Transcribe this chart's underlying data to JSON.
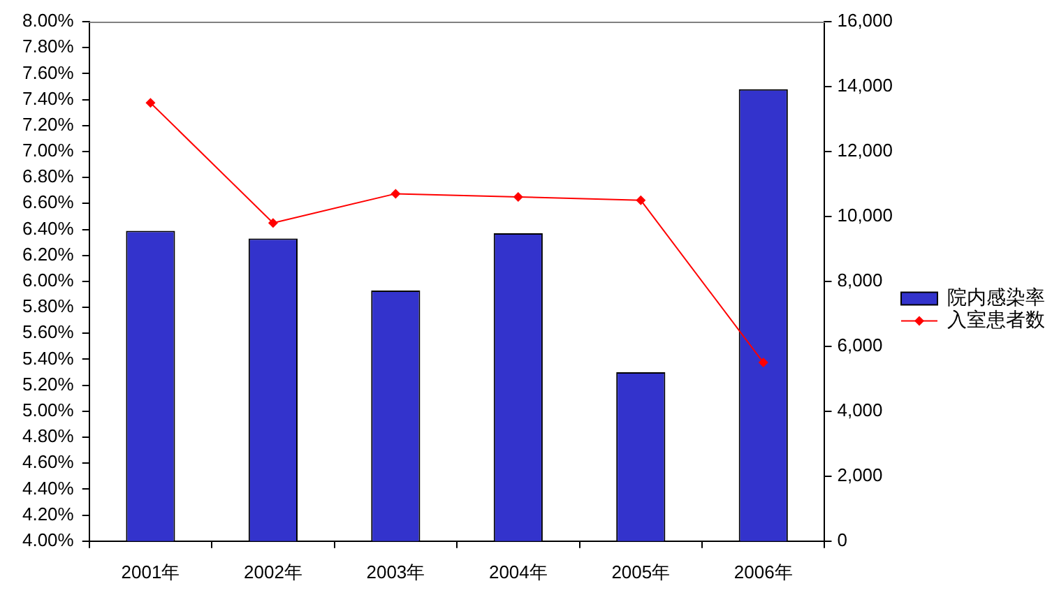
{
  "chart_data": {
    "type": "bar",
    "categories": [
      "2001年",
      "2002年",
      "2003年",
      "2004年",
      "2005年",
      "2006年"
    ],
    "series": [
      {
        "name": "院内感染率",
        "color": "#3333cc",
        "values": [
          6.39,
          6.33,
          5.93,
          6.37,
          5.3,
          7.48
        ]
      },
      {
        "name": "入室患者数",
        "type": "line",
        "axis": "y2",
        "color": "#ff0000",
        "values": [
          13500,
          9800,
          10700,
          10600,
          10500,
          5500
        ]
      }
    ],
    "ylim": [
      4,
      8
    ],
    "yticks": [
      {
        "value": 4,
        "label": "4.00%"
      },
      {
        "value": 4.2,
        "label": "4.20%"
      },
      {
        "value": 4.4,
        "label": "4.40%"
      },
      {
        "value": 4.6,
        "label": "4.60%"
      },
      {
        "value": 4.8,
        "label": "4.80%"
      },
      {
        "value": 5,
        "label": "5.00%"
      },
      {
        "value": 5.2,
        "label": "5.20%"
      },
      {
        "value": 5.4,
        "label": "5.40%"
      },
      {
        "value": 5.6,
        "label": "5.60%"
      },
      {
        "value": 5.8,
        "label": "5.80%"
      },
      {
        "value": 6,
        "label": "6.00%"
      },
      {
        "value": 6.2,
        "label": "6.20%"
      },
      {
        "value": 6.4,
        "label": "6.40%"
      },
      {
        "value": 6.6,
        "label": "6.60%"
      },
      {
        "value": 6.8,
        "label": "6.80%"
      },
      {
        "value": 7,
        "label": "7.00%"
      },
      {
        "value": 7.2,
        "label": "7.20%"
      },
      {
        "value": 7.4,
        "label": "7.40%"
      },
      {
        "value": 7.6,
        "label": "7.60%"
      },
      {
        "value": 7.8,
        "label": "7.80%"
      },
      {
        "value": 8,
        "label": "8.00%"
      }
    ],
    "y2lim": [
      0,
      16000
    ],
    "y2ticks": [
      0,
      {
        "value": 2000,
        "label": "2,000"
      },
      {
        "value": 4000,
        "label": "4,000"
      },
      {
        "value": 6000,
        "label": "6,000"
      },
      {
        "value": 8000,
        "label": "8,000"
      },
      {
        "value": 10000,
        "label": "10,000"
      },
      {
        "value": 12000,
        "label": "12,000"
      },
      {
        "value": 14000,
        "label": "14,000"
      },
      {
        "value": 16000,
        "label": "16,000"
      }
    ],
    "grid": false,
    "legend": "right",
    "marker": "diamond",
    "line_style": "solid"
  }
}
